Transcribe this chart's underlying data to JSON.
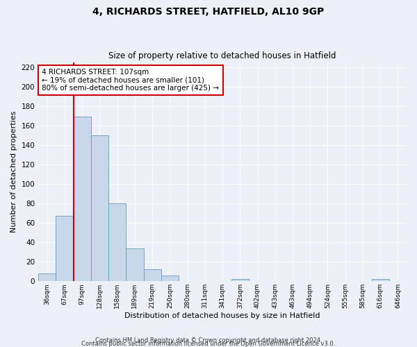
{
  "title": "4, RICHARDS STREET, HATFIELD, AL10 9GP",
  "subtitle": "Size of property relative to detached houses in Hatfield",
  "xlabel": "Distribution of detached houses by size in Hatfield",
  "ylabel": "Number of detached properties",
  "footer_lines": [
    "Contains HM Land Registry data © Crown copyright and database right 2024.",
    "Contains public sector information licensed under the Open Government Licence v3.0."
  ],
  "bin_labels": [
    "36sqm",
    "67sqm",
    "97sqm",
    "128sqm",
    "158sqm",
    "189sqm",
    "219sqm",
    "250sqm",
    "280sqm",
    "311sqm",
    "341sqm",
    "372sqm",
    "402sqm",
    "433sqm",
    "463sqm",
    "494sqm",
    "524sqm",
    "555sqm",
    "585sqm",
    "616sqm",
    "646sqm"
  ],
  "bar_values": [
    8,
    67,
    169,
    150,
    80,
    34,
    12,
    6,
    0,
    0,
    0,
    2,
    0,
    0,
    0,
    0,
    0,
    0,
    0,
    2,
    0
  ],
  "bar_color": "#c8d8ea",
  "bar_edge_color": "#6699bb",
  "ylim": [
    0,
    225
  ],
  "yticks": [
    0,
    20,
    40,
    60,
    80,
    100,
    120,
    140,
    160,
    180,
    200,
    220
  ],
  "vline_x_index": 1.5,
  "annotation_title": "4 RICHARDS STREET: 107sqm",
  "annotation_line1": "← 19% of detached houses are smaller (101)",
  "annotation_line2": "80% of semi-detached houses are larger (425) →",
  "annotation_box_color": "#ffffff",
  "annotation_border_color": "#cc0000",
  "vline_color": "#cc0000",
  "background_color": "#edf1f7",
  "plot_bg_color": "#edf1f7",
  "grid_color": "#ffffff"
}
